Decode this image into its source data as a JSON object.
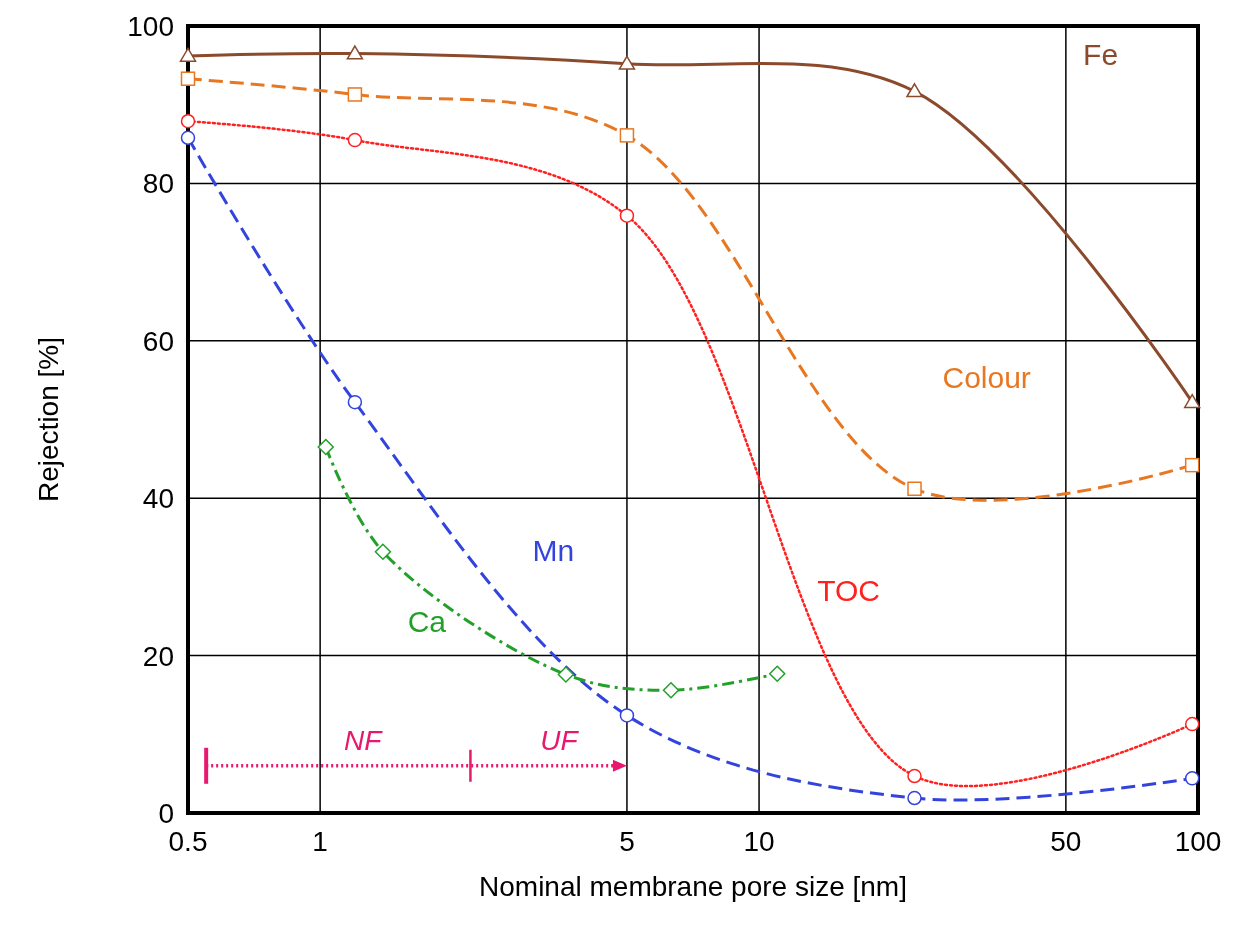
{
  "chart_data": {
    "type": "line",
    "xlabel": "Nominal membrane pore size [nm]",
    "ylabel": "Rejection [%]",
    "log": "x",
    "xlim": [
      0.5,
      100
    ],
    "xticks": [
      0.5,
      1,
      5,
      10,
      50,
      100
    ],
    "ylim": [
      0,
      100
    ],
    "yticks": [
      0,
      20,
      40,
      60,
      80,
      100
    ],
    "grid": true,
    "series": [
      {
        "name": "Fe",
        "color": "#8b4a2b",
        "marker": "triangle",
        "line_style": "solid",
        "x": [
          0.5,
          1.2,
          5,
          22.6,
          97
        ],
        "values": [
          96.2,
          96.5,
          95.2,
          91.7,
          52.2
        ]
      },
      {
        "name": "Colour",
        "color": "#e87722",
        "marker": "square",
        "line_style": "dashed",
        "x": [
          0.5,
          1.2,
          5,
          22.6,
          97
        ],
        "values": [
          93.3,
          91.3,
          86.1,
          41.2,
          44.2
        ]
      },
      {
        "name": "TOC",
        "color": "#ff2020",
        "marker": "circle",
        "line_style": "dotted",
        "x": [
          0.5,
          1.2,
          5,
          22.6,
          97
        ],
        "values": [
          87.9,
          85.5,
          75.9,
          4.7,
          11.3
        ]
      },
      {
        "name": "Mn",
        "color": "#3344dd",
        "marker": "circle",
        "line_style": "dashed",
        "x": [
          0.5,
          1.2,
          5,
          22.6,
          97
        ],
        "values": [
          85.8,
          52.2,
          12.4,
          1.9,
          4.4
        ]
      },
      {
        "name": "Ca",
        "color": "#22a02a",
        "marker": "diamond",
        "line_style": "dashdot",
        "x": [
          1.03,
          1.39,
          3.63,
          6.3,
          11
        ],
        "values": [
          46.5,
          33.2,
          17.6,
          15.6,
          17.7
        ]
      }
    ],
    "annotations": [
      "NF",
      "UF"
    ]
  }
}
